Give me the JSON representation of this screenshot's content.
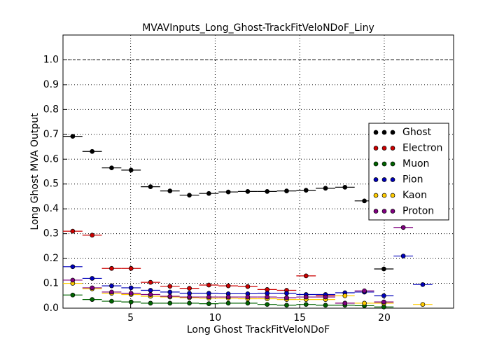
{
  "chart_data": {
    "type": "errorbar",
    "title": "MVAVInputs_Long_Ghost-TrackFitVeloNDoF_Liny",
    "xlabel": "Long Ghost TrackFitVeloNDoF",
    "ylabel": "Long Ghost MVA Output",
    "x": [
      1.575,
      2.725,
      3.875,
      5.025,
      6.175,
      7.325,
      8.475,
      9.625,
      10.775,
      11.925,
      13.075,
      14.225,
      15.375,
      16.525,
      17.675,
      18.825,
      19.975,
      21.125,
      22.275
    ],
    "xerr": 0.575,
    "xlim": [
      1,
      24.1
    ],
    "ylim": [
      0,
      1.1
    ],
    "xticks": [
      5,
      10,
      15,
      20
    ],
    "yticks": [
      {
        "value": 0,
        "label": "0.0"
      },
      {
        "value": 0.1,
        "label": "0.1"
      },
      {
        "value": 0.2,
        "label": "0.2"
      },
      {
        "value": 0.3,
        "label": "0.3"
      },
      {
        "value": 0.4,
        "label": "0.4"
      },
      {
        "value": 0.5,
        "label": "0.5"
      },
      {
        "value": 0.6,
        "label": "0.6"
      },
      {
        "value": 0.7,
        "label": "0.7"
      },
      {
        "value": 0.8,
        "label": "0.8"
      },
      {
        "value": 0.9,
        "label": "0.9"
      },
      {
        "value": 1,
        "label": "1.0"
      }
    ],
    "hline": 1,
    "grid": true,
    "legend": "right",
    "series": [
      {
        "name": "Ghost",
        "color": "#000000",
        "values": [
          0.692,
          0.631,
          0.565,
          0.556,
          0.489,
          0.472,
          0.455,
          0.462,
          0.468,
          0.47,
          0.47,
          0.472,
          0.475,
          0.483,
          0.487,
          0.432,
          0.158,
          null,
          null
        ]
      },
      {
        "name": "Electron",
        "color": "#cc0000",
        "values": [
          0.31,
          0.294,
          0.16,
          0.16,
          0.104,
          0.088,
          0.08,
          0.093,
          0.09,
          0.087,
          0.075,
          0.072,
          0.13,
          0.05,
          0.02,
          0.065,
          0.02,
          null,
          null
        ]
      },
      {
        "name": "Muon",
        "color": "#006400",
        "values": [
          0.053,
          0.035,
          0.028,
          0.025,
          0.02,
          0.02,
          0.02,
          0.018,
          0.02,
          0.02,
          0.015,
          0.012,
          0.015,
          0.012,
          0.012,
          0.01,
          0.005,
          null,
          null
        ]
      },
      {
        "name": "Pion",
        "color": "#0000bb",
        "values": [
          0.167,
          0.12,
          0.09,
          0.082,
          0.072,
          0.065,
          0.06,
          0.06,
          0.058,
          0.058,
          0.06,
          0.06,
          0.055,
          0.055,
          0.062,
          0.065,
          0.05,
          0.21,
          0.095
        ]
      },
      {
        "name": "Kaon",
        "color": "#ffcc00",
        "values": [
          0.1,
          0.078,
          0.06,
          0.055,
          0.048,
          0.045,
          0.042,
          0.04,
          0.04,
          0.038,
          0.038,
          0.035,
          0.035,
          0.035,
          0.05,
          0.02,
          0.02,
          null,
          0.015
        ]
      },
      {
        "name": "Proton",
        "color": "#800080",
        "values": [
          0.113,
          0.082,
          0.065,
          0.06,
          0.055,
          0.048,
          0.045,
          0.045,
          0.045,
          0.045,
          0.045,
          0.042,
          0.045,
          0.045,
          0.02,
          0.07,
          0.025,
          0.325,
          null
        ]
      }
    ]
  }
}
